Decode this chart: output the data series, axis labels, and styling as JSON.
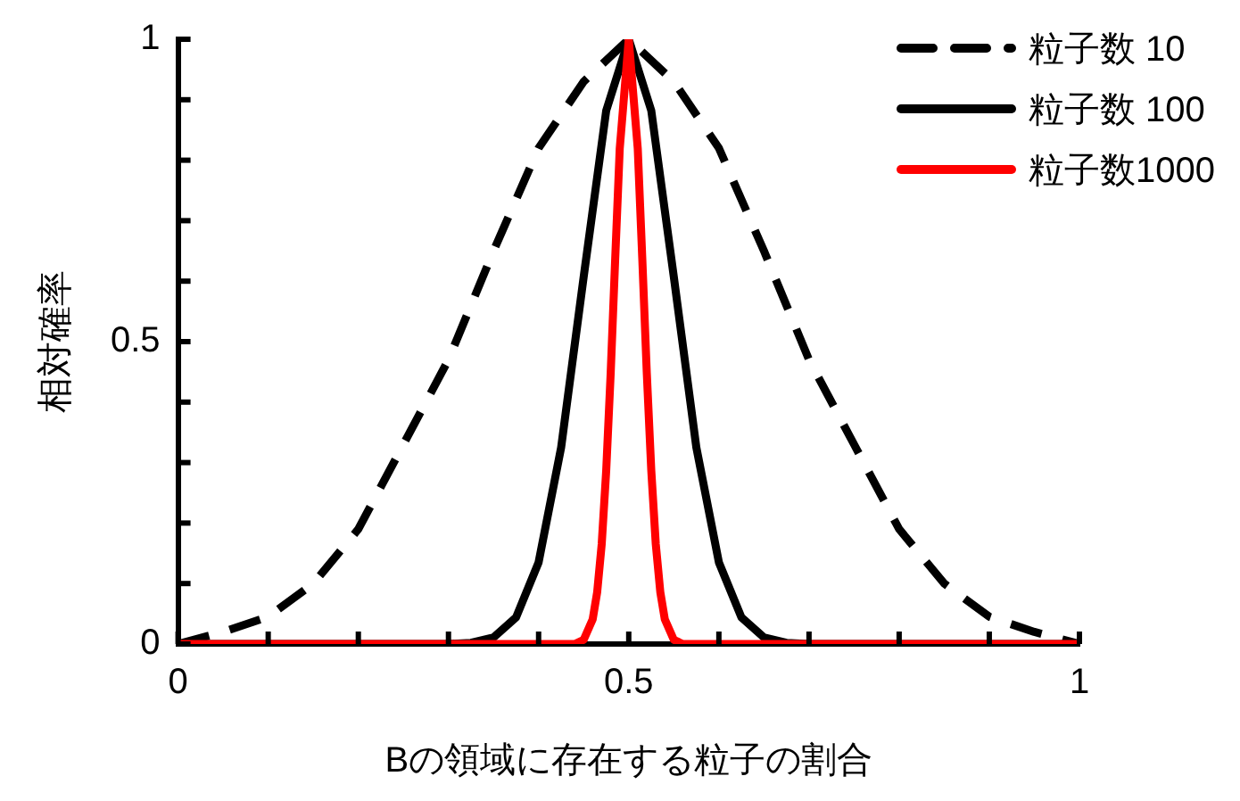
{
  "chart_data": {
    "type": "line",
    "xlabel": "Bの領域に存在する粒子の割合",
    "ylabel": "相対確率",
    "xlim": [
      0,
      1
    ],
    "ylim": [
      0,
      1
    ],
    "xticks": [
      0,
      {
        "value": 0.1,
        "label": null
      },
      {
        "value": 0.2,
        "label": null
      },
      {
        "value": 0.3,
        "label": null
      },
      {
        "value": 0.4,
        "label": null
      },
      0.5,
      {
        "value": 0.6,
        "label": null
      },
      {
        "value": 0.7,
        "label": null
      },
      {
        "value": 0.8,
        "label": null
      },
      {
        "value": 0.9,
        "label": null
      },
      1
    ],
    "yticks": [
      0,
      {
        "value": 0.1,
        "label": null
      },
      {
        "value": 0.2,
        "label": null
      },
      {
        "value": 0.3,
        "label": null
      },
      {
        "value": 0.4,
        "label": null
      },
      0.5,
      {
        "value": 0.6,
        "label": null
      },
      {
        "value": 0.7,
        "label": null
      },
      {
        "value": 0.8,
        "label": null
      },
      {
        "value": 0.9,
        "label": null
      },
      1
    ],
    "grid": false,
    "legend": "top right",
    "series": [
      {
        "name": "粒子数 10",
        "color": "#000000",
        "line_style": "dashed",
        "x": [
          0,
          0.05,
          0.1,
          0.15,
          0.2,
          0.25,
          0.3,
          0.35,
          0.4,
          0.45,
          0.5,
          0.55,
          0.6,
          0.65,
          0.7,
          0.75,
          0.8,
          0.85,
          0.9,
          0.95,
          1
        ],
        "values": [
          0,
          0.02,
          0.045,
          0.1,
          0.19,
          0.33,
          0.47,
          0.65,
          0.82,
          0.93,
          1,
          0.93,
          0.82,
          0.65,
          0.47,
          0.33,
          0.19,
          0.1,
          0.045,
          0.02,
          0
        ]
      },
      {
        "name": "粒子数 100",
        "color": "#000000",
        "x": [
          0,
          0.3,
          0.325,
          0.35,
          0.375,
          0.4,
          0.425,
          0.45,
          0.475,
          0.5,
          0.525,
          0.55,
          0.575,
          0.6,
          0.625,
          0.65,
          0.675,
          0.7,
          1
        ],
        "values": [
          0,
          0,
          0.002,
          0.011,
          0.044,
          0.135,
          0.325,
          0.607,
          0.882,
          1,
          0.882,
          0.607,
          0.325,
          0.135,
          0.044,
          0.011,
          0.002,
          0,
          0
        ]
      },
      {
        "name": "粒子数1000",
        "color": "#ff0000",
        "x": [
          0,
          0.44,
          0.45,
          0.46,
          0.465,
          0.47,
          0.475,
          0.48,
          0.485,
          0.49,
          0.5,
          0.51,
          0.515,
          0.52,
          0.525,
          0.53,
          0.535,
          0.54,
          0.55,
          0.56,
          1
        ],
        "values": [
          0,
          0,
          0.007,
          0.041,
          0.086,
          0.165,
          0.287,
          0.449,
          0.638,
          0.819,
          1,
          0.819,
          0.638,
          0.449,
          0.287,
          0.165,
          0.086,
          0.041,
          0.007,
          0,
          0
        ]
      }
    ]
  }
}
